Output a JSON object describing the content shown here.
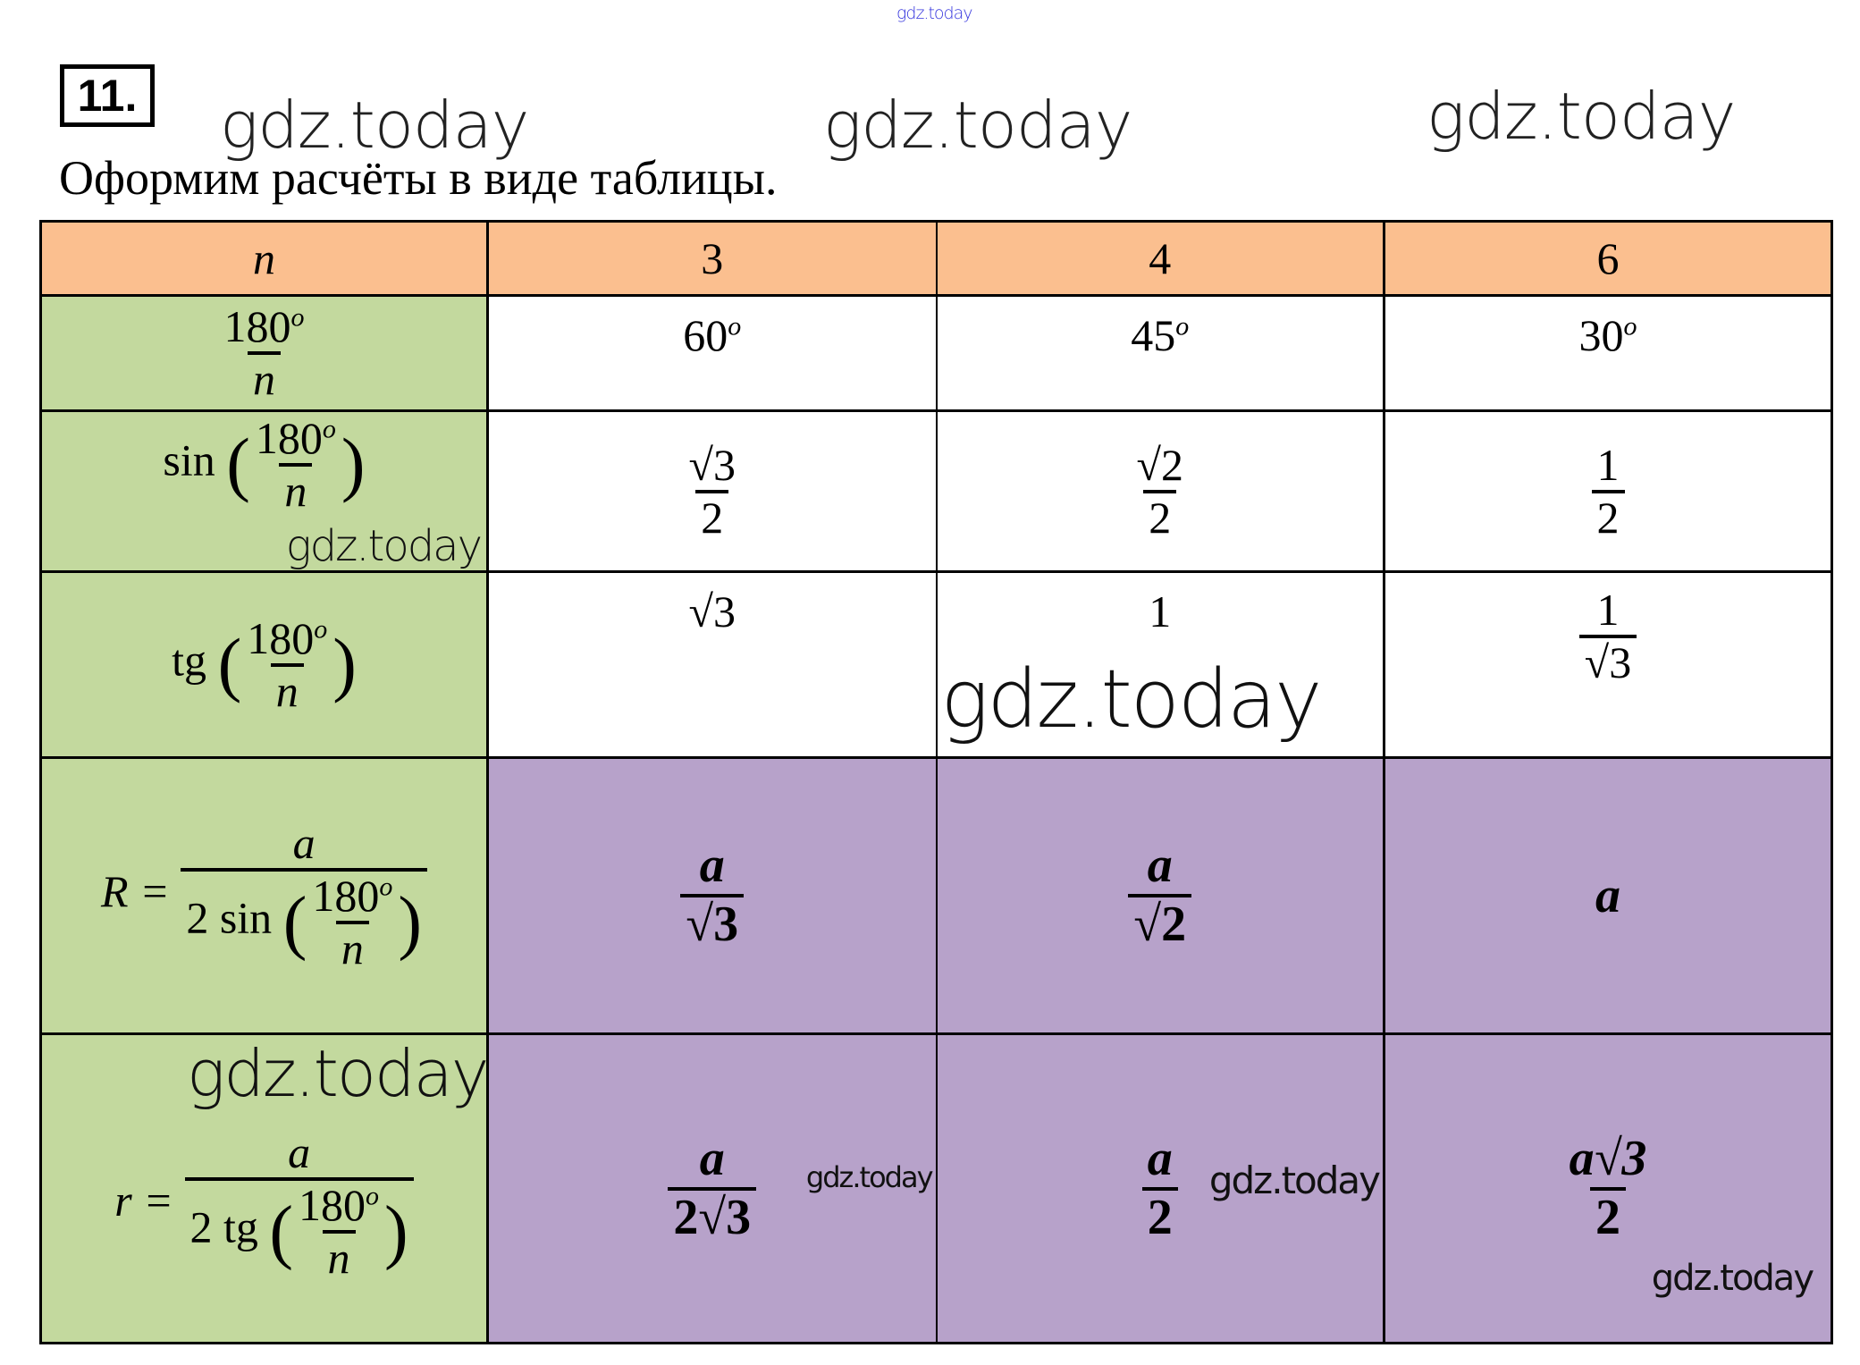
{
  "watermark": "gdz.today",
  "problem_number": "11.",
  "intro": "Оформим расчёты в виде таблицы.",
  "colors": {
    "header": "#FBBF8F",
    "label_column": "#C3D99E",
    "result_cells": "#B7A2CA"
  },
  "header": {
    "label": "n",
    "cols": [
      "3",
      "4",
      "6"
    ]
  },
  "rows": {
    "angle": {
      "num": "180",
      "deg": "o",
      "den": "n",
      "values": [
        "60",
        "45",
        "30"
      ]
    },
    "sin": {
      "fn": "sin",
      "num": "180",
      "deg": "o",
      "den": "n",
      "values": [
        {
          "num": "√3",
          "den": "2"
        },
        {
          "num": "√2",
          "den": "2"
        },
        {
          "num": "1",
          "den": "2"
        }
      ]
    },
    "tg": {
      "fn": "tg",
      "num": "180",
      "deg": "o",
      "den": "n",
      "values": [
        "√3",
        "1",
        {
          "num": "1",
          "den": "√3"
        }
      ]
    },
    "R": {
      "lhs": "R =",
      "num": "a",
      "den_prefix": "2 sin",
      "inner_num": "180",
      "deg": "o",
      "inner_den": "n",
      "values": [
        {
          "num": "a",
          "den": "√3"
        },
        {
          "num": "a",
          "den": "√2"
        },
        "a"
      ]
    },
    "r": {
      "lhs": "r =",
      "num": "a",
      "den_prefix": "2 tg",
      "inner_num": "180",
      "deg": "o",
      "inner_den": "n",
      "values": [
        {
          "num": "a",
          "den": "2√3"
        },
        {
          "num": "a",
          "den": "2"
        },
        {
          "num": "a√3",
          "den": "2"
        }
      ]
    }
  }
}
